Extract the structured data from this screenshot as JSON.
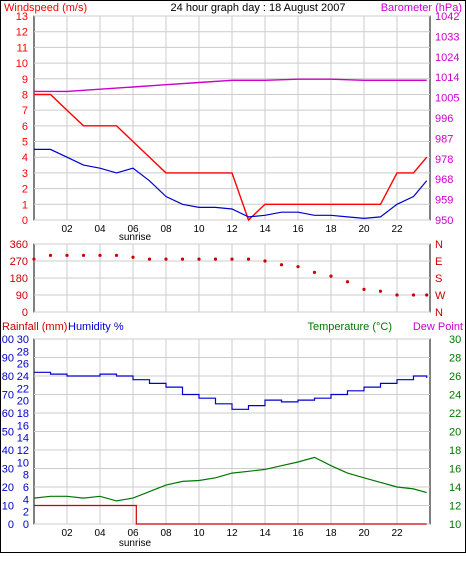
{
  "panels": {
    "wind": {
      "title": "24 hour graph day : 18 August 2007",
      "left_label": "Windspeed (m/s)",
      "right_label": "Barometer (hPa)",
      "left_ticks": [
        "0",
        "1",
        "2",
        "3",
        "4",
        "5",
        "6",
        "7",
        "8",
        "9",
        "10",
        "11",
        "12",
        "13"
      ],
      "right_ticks": [
        "950",
        "959",
        "968",
        "978",
        "987",
        "996",
        "1005",
        "1014",
        "1024",
        "1033",
        "1042"
      ],
      "x_ticks": [
        "02",
        "04",
        "06",
        "08",
        "10",
        "12",
        "14",
        "16",
        "18",
        "20",
        "22"
      ],
      "sunrise_label": "sunrise",
      "colors": {
        "gust": "#ff0000",
        "speed": "#0000cc",
        "baro": "#cc00cc",
        "left_axis": "#ff0000",
        "right_axis": "#cc00cc"
      }
    },
    "direction": {
      "left_ticks": [
        "0",
        "90",
        "180",
        "270",
        "360"
      ],
      "right_ticks": [
        "N",
        "E",
        "S",
        "W",
        "N"
      ],
      "color": "#cc0000"
    },
    "temp": {
      "left_label_rain": "Rainfall (mm)",
      "left_label_hum": "Humidity %",
      "right_label_temp": "Temperature (°C)",
      "right_label_dew": "Dew Point",
      "rain_ticks": [
        "0",
        "2",
        "4",
        "6",
        "8",
        "10",
        "12",
        "14",
        "16",
        "18",
        "20",
        "22",
        "24",
        "26",
        "28",
        "30"
      ],
      "hum_ticks": [
        "0",
        "10",
        "20",
        "30",
        "40",
        "50",
        "60",
        "70",
        "80",
        "90",
        "100"
      ],
      "temp_ticks": [
        "10",
        "12",
        "14",
        "16",
        "18",
        "20",
        "22",
        "24",
        "26",
        "28",
        "30"
      ],
      "x_ticks": [
        "02",
        "04",
        "06",
        "08",
        "10",
        "12",
        "14",
        "16",
        "18",
        "20",
        "22"
      ],
      "sunrise_label": "sunrise",
      "colors": {
        "humidity": "#0000cc",
        "temperature": "#007700",
        "rain": "#cc0000",
        "left_axis": "#0000cc",
        "right_axis": "#007700"
      }
    }
  },
  "chart_data": [
    {
      "type": "line",
      "xlabel": "",
      "ylabel": "Windspeed (m/s)",
      "y2label": "Barometer (hPa)",
      "xlim": [
        0,
        24
      ],
      "ylim": [
        0,
        13
      ],
      "y2lim": [
        950,
        1042
      ],
      "series": [
        {
          "x": [
            0,
            1,
            2,
            3,
            4,
            5,
            6,
            7,
            8,
            9,
            10,
            11,
            12,
            13,
            14,
            15,
            16,
            17,
            18,
            19,
            20,
            21,
            22,
            23,
            23.8
          ],
          "values": [
            8,
            8,
            7,
            6,
            6,
            6,
            5,
            4,
            3,
            3,
            3,
            3,
            3,
            0,
            1,
            1,
            1,
            1,
            1,
            1,
            1,
            1,
            3,
            3,
            4
          ]
        },
        {
          "x": [
            0,
            1,
            2,
            3,
            4,
            5,
            6,
            7,
            8,
            9,
            10,
            11,
            12,
            13,
            14,
            15,
            16,
            17,
            18,
            19,
            20,
            21,
            22,
            23,
            23.8
          ],
          "values": [
            4.5,
            4.5,
            4,
            3.5,
            3.3,
            3,
            3.3,
            2.5,
            1.5,
            1,
            0.8,
            0.8,
            0.7,
            0.2,
            0.3,
            0.5,
            0.5,
            0.3,
            0.3,
            0.2,
            0.1,
            0.2,
            1,
            1.5,
            2.5
          ]
        },
        {
          "x": [
            0,
            2,
            4,
            6,
            8,
            10,
            12,
            14,
            16,
            18,
            20,
            22,
            23.8
          ],
          "values": [
            1008,
            1008,
            1009,
            1010,
            1011,
            1012,
            1013,
            1013,
            1013.5,
            1013.5,
            1013,
            1013,
            1013
          ]
        }
      ]
    },
    {
      "type": "scatter",
      "ylabel": "Wind direction",
      "xlim": [
        0,
        24
      ],
      "ylim": [
        0,
        360
      ],
      "x": [
        0,
        1,
        2,
        3,
        4,
        5,
        6,
        7,
        8,
        9,
        10,
        11,
        12,
        13,
        14,
        15,
        16,
        17,
        18,
        19,
        20,
        21,
        22,
        23,
        23.8
      ],
      "values": [
        280,
        300,
        300,
        300,
        300,
        300,
        290,
        280,
        280,
        280,
        280,
        280,
        280,
        280,
        270,
        250,
        240,
        210,
        190,
        160,
        120,
        110,
        90,
        90,
        90
      ]
    },
    {
      "type": "line",
      "ylabel": "Humidity %",
      "y2label": "Temperature (°C)",
      "xlim": [
        0,
        24
      ],
      "ylim": [
        0,
        100
      ],
      "y2lim": [
        10,
        30
      ],
      "series": [
        {
          "x": [
            0,
            1,
            2,
            3,
            4,
            5,
            6,
            7,
            8,
            9,
            10,
            11,
            12,
            13,
            14,
            15,
            16,
            17,
            18,
            19,
            20,
            21,
            22,
            23,
            23.8
          ],
          "values": [
            82,
            81,
            80,
            80,
            81,
            80,
            78,
            76,
            74,
            70,
            68,
            65,
            62,
            64,
            67,
            66,
            67,
            68,
            70,
            72,
            74,
            76,
            78,
            80,
            79
          ]
        },
        {
          "x": [
            0,
            1,
            2,
            3,
            4,
            5,
            6,
            7,
            8,
            9,
            10,
            11,
            12,
            13,
            14,
            15,
            16,
            17,
            18,
            19,
            20,
            21,
            22,
            23,
            23.8
          ],
          "values": [
            12.8,
            13,
            13,
            12.8,
            13,
            12.5,
            12.8,
            13.5,
            14.2,
            14.6,
            14.7,
            15,
            15.5,
            15.7,
            15.9,
            16.3,
            16.7,
            17.2,
            16.3,
            15.5,
            15,
            14.5,
            14,
            13.8,
            13.4
          ]
        },
        {
          "x": [
            0,
            1,
            2,
            3,
            4,
            5,
            6,
            6.2,
            7,
            8,
            10,
            12,
            14,
            16,
            18,
            20,
            22,
            23.8
          ],
          "values": [
            3,
            3,
            3,
            3,
            3,
            3,
            3,
            0,
            0,
            0,
            0,
            0,
            0,
            0,
            0,
            0,
            0,
            0
          ]
        }
      ]
    }
  ]
}
